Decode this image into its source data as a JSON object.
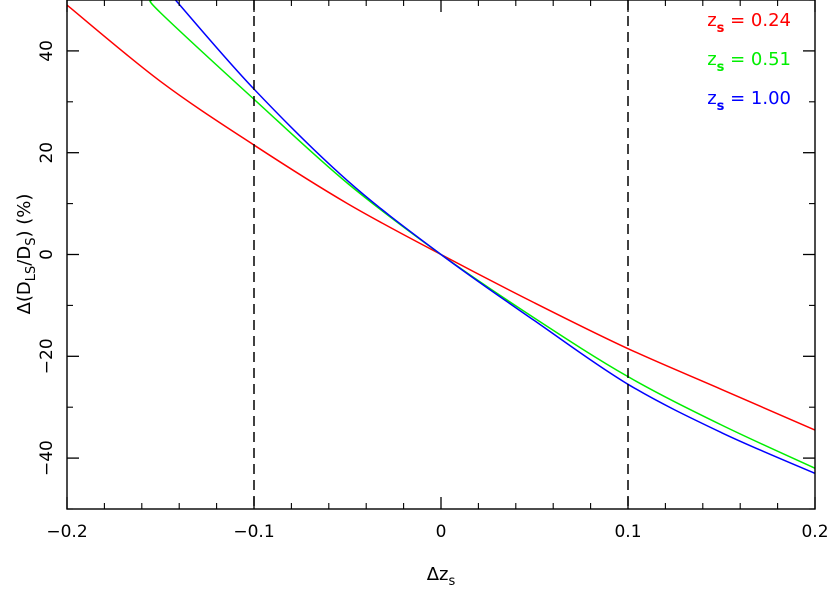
{
  "chart_data": {
    "type": "line",
    "xlabel": {
      "main": "Δz",
      "sub": "s"
    },
    "ylabel": {
      "prefix": "Δ(D",
      "sub1": "LS",
      "mid": "/D",
      "sub2": "S",
      "suffix": ") (%)"
    },
    "xlim": [
      -0.2,
      0.2
    ],
    "ylim": [
      -50,
      50
    ],
    "xticks": [
      -0.2,
      -0.1,
      0,
      0.1,
      0.2
    ],
    "xtick_labels": [
      "−0.2",
      "−0.1",
      "0",
      "0.1",
      "0.2"
    ],
    "yticks": [
      -40,
      -20,
      0,
      20,
      40
    ],
    "ytick_labels": [
      "−40",
      "−20",
      "0",
      "20",
      "40"
    ],
    "grid": false,
    "legend_position": "top-right",
    "vlines": [
      -0.1,
      0.1
    ],
    "series": [
      {
        "name": "z_s = 0.24",
        "legend": {
          "main": "z",
          "sub": "s",
          "value": "= 0.24"
        },
        "color": "#ff0000",
        "x": [
          -0.2,
          -0.15,
          -0.1,
          -0.05,
          0,
          0.05,
          0.1,
          0.15,
          0.2
        ],
        "y": [
          49,
          34,
          21.5,
          10,
          0,
          -9.5,
          -18.5,
          -26.5,
          -34.5
        ]
      },
      {
        "name": "z_s = 0.51",
        "legend": {
          "main": "z",
          "sub": "s",
          "value": "= 0.51"
        },
        "color": "#00ee00",
        "x": [
          -0.155,
          -0.15,
          -0.1,
          -0.05,
          0,
          0.05,
          0.1,
          0.15,
          0.2
        ],
        "y": [
          50,
          47.5,
          30.5,
          14,
          0,
          -12.5,
          -24,
          -33.5,
          -42
        ]
      },
      {
        "name": "z_s = 1.00",
        "legend": {
          "main": "z",
          "sub": "s",
          "value": "= 1.00"
        },
        "color": "#0000ff",
        "x": [
          -0.142,
          -0.1,
          -0.05,
          0,
          0.05,
          0.1,
          0.15,
          0.2
        ],
        "y": [
          50,
          32.5,
          14.5,
          0,
          -13,
          -25.5,
          -35,
          -43
        ]
      }
    ]
  }
}
